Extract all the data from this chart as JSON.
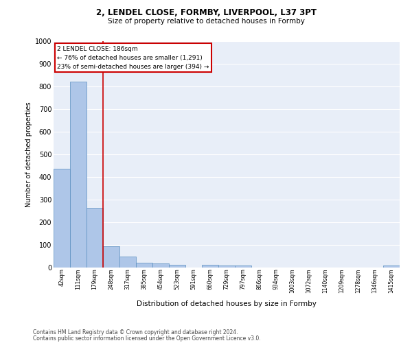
{
  "title_line1": "2, LENDEL CLOSE, FORMBY, LIVERPOOL, L37 3PT",
  "title_line2": "Size of property relative to detached houses in Formby",
  "xlabel": "Distribution of detached houses by size in Formby",
  "ylabel": "Number of detached properties",
  "bar_color": "#aec6e8",
  "bar_edge_color": "#5a8fc0",
  "annotation_box_color": "#cc0000",
  "annotation_text_line1": "2 LENDEL CLOSE: 186sqm",
  "annotation_text_line2": "← 76% of detached houses are smaller (1,291)",
  "annotation_text_line3": "23% of semi-detached houses are larger (394) →",
  "property_marker_color": "#cc0000",
  "categories": [
    "42sqm",
    "111sqm",
    "179sqm",
    "248sqm",
    "317sqm",
    "385sqm",
    "454sqm",
    "523sqm",
    "591sqm",
    "660sqm",
    "729sqm",
    "797sqm",
    "866sqm",
    "934sqm",
    "1003sqm",
    "1072sqm",
    "1140sqm",
    "1209sqm",
    "1278sqm",
    "1346sqm",
    "1415sqm"
  ],
  "values": [
    435,
    820,
    265,
    93,
    47,
    22,
    17,
    12,
    0,
    12,
    8,
    8,
    0,
    0,
    0,
    0,
    0,
    0,
    0,
    0,
    8
  ],
  "ylim": [
    0,
    1000
  ],
  "yticks": [
    0,
    100,
    200,
    300,
    400,
    500,
    600,
    700,
    800,
    900,
    1000
  ],
  "background_color": "#ffffff",
  "plot_bg_color": "#e8eef8",
  "grid_color": "#ffffff",
  "footer_line1": "Contains HM Land Registry data © Crown copyright and database right 2024.",
  "footer_line2": "Contains public sector information licensed under the Open Government Licence v3.0."
}
